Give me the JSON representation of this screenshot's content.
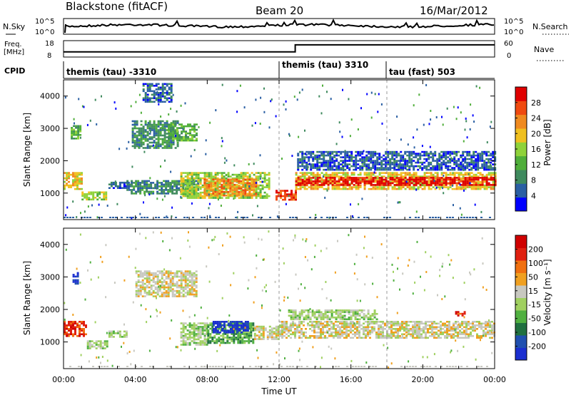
{
  "header": {
    "station": "Blackstone (fitACF)",
    "beam": "Beam 20",
    "date": "16/Mar/2012"
  },
  "colors": {
    "power_scale": [
      "#0000ff",
      "#2a5fa3",
      "#3f8a5e",
      "#4fae3a",
      "#8fd23a",
      "#f0c020",
      "#f08a20",
      "#f04a10",
      "#e00000"
    ],
    "velocity_scale": [
      "#1b2fd0",
      "#2050b0",
      "#207040",
      "#50b040",
      "#a0d060",
      "#c8c8c0",
      "#f0a020",
      "#f07010",
      "#e02010",
      "#d00000"
    ]
  },
  "chart_data": [
    {
      "type": "line",
      "panel": "noise",
      "left_label": "N.Sky",
      "right_label": "N.Search",
      "left_ticks": [
        "10^5",
        "10^0"
      ],
      "right_ticks": [
        "10^5",
        "10^0"
      ],
      "x_range": [
        "00:00",
        "24:00"
      ]
    },
    {
      "type": "line",
      "panel": "frequency",
      "left_label": "Freq.",
      "left_unit": "[MHz]",
      "right_label": "Nave",
      "left_ticks": [
        8,
        18
      ],
      "right_ticks": [
        0,
        60
      ],
      "steps": [
        {
          "x_hours": 0.0,
          "freq_mhz": 10.5
        },
        {
          "x_hours": 0.1,
          "freq_mhz": 10.5
        },
        {
          "x_hours": 12.9,
          "freq_mhz": 10.5
        },
        {
          "x_hours": 12.9,
          "freq_mhz": 16.3
        },
        {
          "x_hours": 24.0,
          "freq_mhz": 16.3
        }
      ]
    },
    {
      "type": "table",
      "panel": "cpid",
      "label": "CPID",
      "segments": [
        {
          "start_hours": 0.0,
          "text": "themis (tau) -3310"
        },
        {
          "start_hours": 12.0,
          "text": "themis (tau) 3310"
        },
        {
          "start_hours": 18.0,
          "text": "tau (fast) 503"
        }
      ]
    },
    {
      "type": "heatmap",
      "panel": "power",
      "ylabel": "Slant Range [km]",
      "ylim": [
        180,
        4500
      ],
      "yticks": [
        1000,
        2000,
        3000,
        4000
      ],
      "colorbar_label": "Power [dB]",
      "colorbar_ticks": [
        4,
        8,
        12,
        16,
        20,
        24,
        28
      ],
      "colorbar_range": [
        0,
        32
      ],
      "bands": [
        {
          "t0": 0.0,
          "t1": 1.0,
          "r0": 1150,
          "r1": 1650,
          "level": 5
        },
        {
          "t0": 1.0,
          "t1": 2.4,
          "r0": 800,
          "r1": 1050,
          "level": 4
        },
        {
          "t0": 0.4,
          "t1": 0.9,
          "r0": 2700,
          "r1": 3100,
          "level": 3
        },
        {
          "t0": 2.5,
          "t1": 3.6,
          "r0": 1150,
          "r1": 1350,
          "level": 1
        },
        {
          "t0": 3.8,
          "t1": 6.4,
          "r0": 2400,
          "r1": 3250,
          "level": 2
        },
        {
          "t0": 5.8,
          "t1": 7.4,
          "r0": 2650,
          "r1": 3150,
          "level": 3
        },
        {
          "t0": 4.4,
          "t1": 6.0,
          "r0": 3800,
          "r1": 4400,
          "level": 1
        },
        {
          "t0": 3.5,
          "t1": 7.5,
          "r0": 1000,
          "r1": 1400,
          "level": 2
        },
        {
          "t0": 6.5,
          "t1": 11.5,
          "r0": 850,
          "r1": 1650,
          "level": 4
        },
        {
          "t0": 7.8,
          "t1": 10.7,
          "r0": 950,
          "r1": 1450,
          "level": 6
        },
        {
          "t0": 11.8,
          "t1": 12.9,
          "r0": 800,
          "r1": 1100,
          "level": 7
        },
        {
          "t0": 12.9,
          "t1": 24.0,
          "r0": 1150,
          "r1": 1650,
          "level": 5
        },
        {
          "t0": 12.9,
          "t1": 24.0,
          "r0": 1250,
          "r1": 1500,
          "level": 8
        },
        {
          "t0": 13.0,
          "t1": 24.0,
          "r0": 1700,
          "r1": 2300,
          "level": 1
        }
      ]
    },
    {
      "type": "heatmap",
      "panel": "velocity",
      "ylabel": "Slant Range [km]",
      "ylim": [
        180,
        4500
      ],
      "yticks": [
        1000,
        2000,
        3000,
        4000
      ],
      "xlabel": "Time UT",
      "xticks": [
        "00:00",
        "04:00",
        "08:00",
        "12:00",
        "16:00",
        "20:00",
        "00:00"
      ],
      "colorbar_label": "Velocity [m s⁻¹]",
      "colorbar_ticks": [
        200,
        100,
        50,
        15,
        -15,
        -50,
        -100,
        -200
      ],
      "bands": [
        {
          "t0": 0.0,
          "t1": 1.3,
          "r0": 1200,
          "r1": 1650,
          "level": 8
        },
        {
          "t0": 1.3,
          "t1": 2.4,
          "r0": 800,
          "r1": 1050,
          "level": 4
        },
        {
          "t0": 0.5,
          "t1": 0.8,
          "r0": 2800,
          "r1": 3150,
          "level": 0
        },
        {
          "t0": 4.0,
          "t1": 7.4,
          "r0": 2400,
          "r1": 3200,
          "level": 5
        },
        {
          "t0": 2.5,
          "t1": 3.5,
          "r0": 1150,
          "r1": 1350,
          "level": 4
        },
        {
          "t0": 6.5,
          "t1": 8.0,
          "r0": 900,
          "r1": 1600,
          "level": 4
        },
        {
          "t0": 8.0,
          "t1": 10.6,
          "r0": 950,
          "r1": 1600,
          "level": 3
        },
        {
          "t0": 8.3,
          "t1": 10.3,
          "r0": 1300,
          "r1": 1650,
          "level": 0
        },
        {
          "t0": 10.6,
          "t1": 12.0,
          "r0": 1100,
          "r1": 1500,
          "level": 5
        },
        {
          "t0": 12.0,
          "t1": 24.0,
          "r0": 1150,
          "r1": 1650,
          "level": 5
        },
        {
          "t0": 12.5,
          "t1": 17.5,
          "r0": 1700,
          "r1": 2000,
          "level": 4
        },
        {
          "t0": 21.8,
          "t1": 22.3,
          "r0": 1800,
          "r1": 1950,
          "level": 8
        }
      ]
    }
  ]
}
